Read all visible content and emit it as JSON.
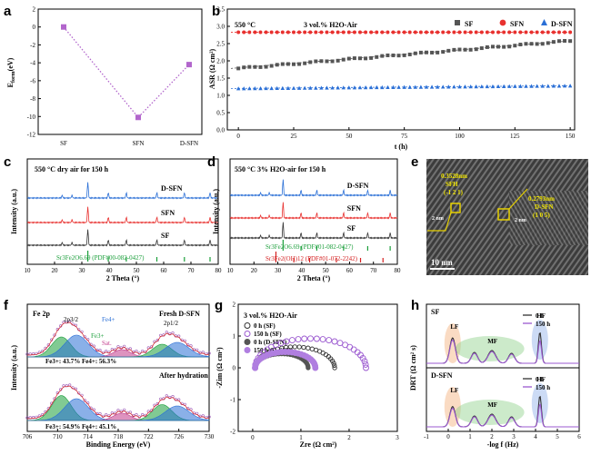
{
  "chart_data": [
    {
      "panel": "a",
      "type": "line",
      "categories": [
        "SF",
        "SFN",
        "D-SFN"
      ],
      "values": [
        0,
        -10.1,
        -4.2
      ],
      "ylabel": "E_form (eV)",
      "ylim": [
        -12,
        2
      ],
      "yticks": [
        "2",
        "0",
        "-2",
        "-4",
        "-6",
        "-8",
        "-10",
        "-12"
      ],
      "color": "#b266cc"
    },
    {
      "panel": "b",
      "type": "scatter",
      "title": "3 vol.% H2O-Air",
      "annotation": "550 °C",
      "xlabel": "t (h)",
      "ylabel": "ASR (Ω cm²)",
      "xlim": [
        -5,
        152
      ],
      "ylim": [
        0,
        3.5
      ],
      "xticks": [
        "0",
        "25",
        "50",
        "75",
        "100",
        "125",
        "150"
      ],
      "yticks": [
        "0.0",
        "0.5",
        "1.0",
        "1.5",
        "2.0",
        "2.5",
        "3.0",
        "3.5"
      ],
      "legend": [
        "SF",
        "SFN",
        "D-SFN"
      ],
      "series": [
        {
          "name": "SF",
          "start": 1.78,
          "end": 2.58,
          "color": "#555555"
        },
        {
          "name": "SFN",
          "start": 2.83,
          "end": 2.83,
          "color": "#e8312f"
        },
        {
          "name": "D-SFN",
          "start": 1.2,
          "end": 1.28,
          "color": "#2a6fd6"
        }
      ]
    },
    {
      "panel": "c",
      "type": "line",
      "title": "550 °C  dry air for 150 h",
      "xlabel": "2 Theta (°)",
      "ylabel": "Intensity (a.u.)",
      "xlim": [
        10,
        80
      ],
      "xticks": [
        "10",
        "20",
        "30",
        "40",
        "50",
        "60",
        "70",
        "80"
      ],
      "series": [
        {
          "name": "D-SFN",
          "color": "#2a6fd6"
        },
        {
          "name": "SFN",
          "color": "#e8312f"
        },
        {
          "name": "SF",
          "color": "#333333"
        }
      ],
      "reference": "Sr3Fe2O6.69 (PDF#00-082-0427)",
      "peaks": [
        32.2,
        39.7,
        46.3,
        57.5,
        67.6,
        77.0
      ]
    },
    {
      "panel": "d",
      "type": "line",
      "title": "550 °C  3% H2O-air for 150 h",
      "xlabel": "2 Theta (°)",
      "ylabel": "Intensity (a.u.)",
      "xlim": [
        10,
        80
      ],
      "xticks": [
        "10",
        "20",
        "30",
        "40",
        "50",
        "60",
        "70",
        "80"
      ],
      "series": [
        {
          "name": "D-SFN",
          "color": "#2a6fd6"
        },
        {
          "name": "SFN",
          "color": "#e8312f"
        },
        {
          "name": "SF",
          "color": "#333333"
        }
      ],
      "references": [
        "Sr3Fe2O6.69 (PDF#01-082-0427)",
        "Sr3Fe2(OH)12 (PDF#01-072-2242)"
      ]
    },
    {
      "panel": "e",
      "type": "image",
      "labels": [
        "0.3528nm",
        "SFH",
        "(-1 2 1)",
        "0.2793nm",
        "D-SFN",
        "(1 0 5)"
      ],
      "scalebars": [
        "2 nm",
        "2 nm",
        "10 nm"
      ]
    },
    {
      "panel": "f",
      "type": "line",
      "title": "Fe 2p",
      "xlabel": "Binding Energy (eV)",
      "ylabel": "Intensity (a.u.)",
      "xlim": [
        706,
        730
      ],
      "xticks": [
        "706",
        "710",
        "714",
        "718",
        "722",
        "726",
        "730"
      ],
      "labels": [
        "Fresh D-SFN",
        "After hydration",
        "2p3/2",
        "2p1/2",
        "Fe3+",
        "Fe4+",
        "Sat."
      ],
      "ratios": [
        "Fe3+: 43.7%  Fe4+: 56.3%",
        "Fe3+: 54.9%  Fe4+: 45.1%"
      ]
    },
    {
      "panel": "g",
      "type": "scatter",
      "title": "3 vol.% H2O-Air",
      "xlabel": "Zre (Ω cm²)",
      "ylabel": "-Zim (Ω cm²)",
      "xlim": [
        -0.3,
        3
      ],
      "ylim": [
        -2,
        2
      ],
      "xticks": [
        "0",
        "1",
        "2",
        "3"
      ],
      "yticks": [
        "-2",
        "-1",
        "0",
        "1",
        "2"
      ],
      "legend": [
        "0 h (SF)",
        "150 h (SF)",
        "0 h (D-SFN)",
        "150 h (D-SFN)"
      ]
    },
    {
      "panel": "h",
      "type": "line",
      "xlabel": "-log f (Hz)",
      "ylabel": "DRT (Ω cm² s)",
      "xlim": [
        -1,
        6
      ],
      "xticks": [
        "-1",
        "0",
        "1",
        "2",
        "3",
        "4",
        "5",
        "6"
      ],
      "subpanels": [
        {
          "name": "SF",
          "legend": [
            "0 h",
            "150 h"
          ],
          "regions": [
            "LF",
            "MF",
            "HF"
          ]
        },
        {
          "name": "D-SFN",
          "legend": [
            "0 h",
            "150 h"
          ],
          "regions": [
            "LF",
            "MF",
            "HF"
          ]
        }
      ]
    }
  ]
}
